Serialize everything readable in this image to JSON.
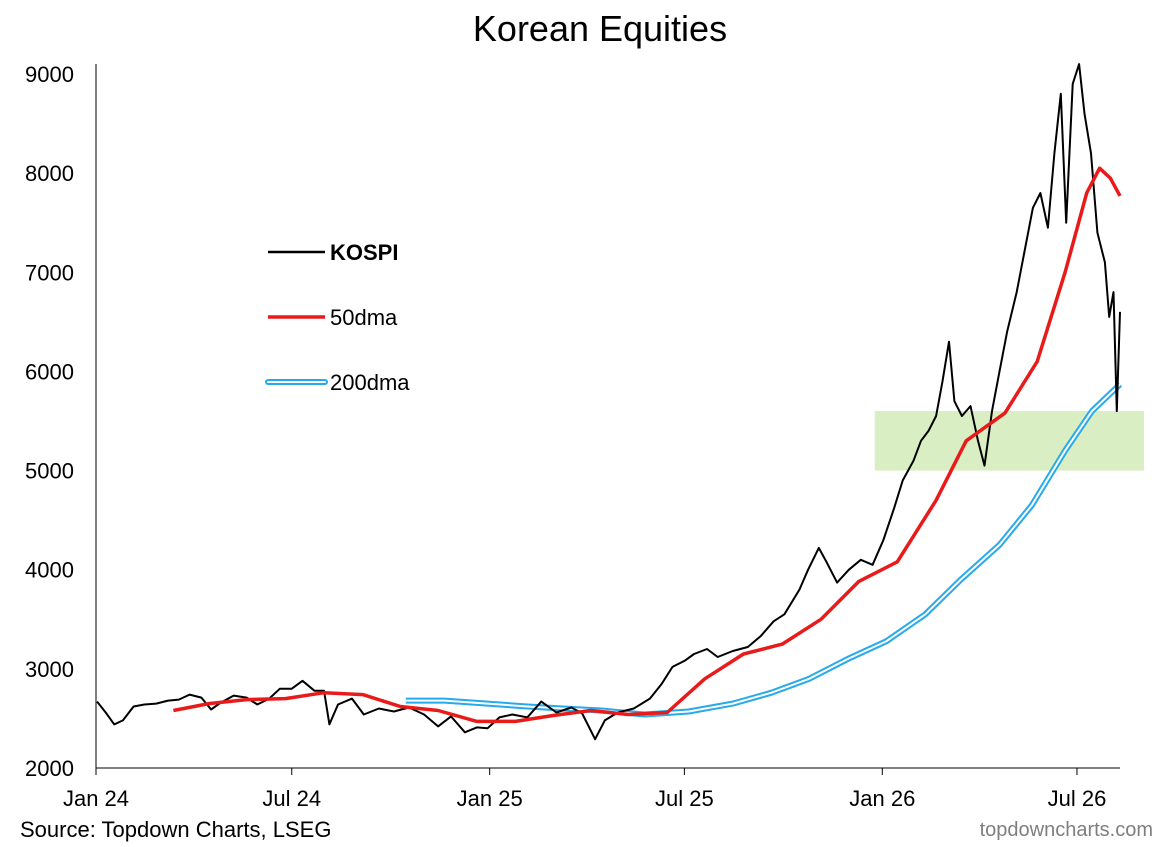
{
  "chart_data": {
    "type": "line",
    "title": "Korean Equities",
    "xlabel": "",
    "ylabel": "",
    "ylim": [
      2000,
      9000
    ],
    "xlim": [
      "2024-01-01",
      "2026-08-10"
    ],
    "y_ticks": [
      2000,
      3000,
      4000,
      5000,
      6000,
      7000,
      8000,
      9000
    ],
    "y_tick_labels": [
      "2000",
      "3000",
      "4000",
      "5000",
      "6000",
      "7000",
      "8000",
      "9000"
    ],
    "x_ticks": [
      "2024-01-01",
      "2024-07-01",
      "2025-01-01",
      "2025-07-01",
      "2026-01-01",
      "2026-07-01"
    ],
    "x_tick_labels": [
      "Jan 24",
      "Jul 24",
      "Jan 25",
      "Jul 25",
      "Jan 26",
      "Jul 26"
    ],
    "grid": false,
    "legend_position": "upper-left",
    "highlight_band": {
      "x_start": "2025-12-25",
      "x_end": "2026-08-10",
      "y_start": 5000,
      "y_end": 5600,
      "color": "#d9efc3"
    },
    "series": [
      {
        "name": "KOSPI",
        "color": "#000000",
        "points": [
          [
            "2024-01-02",
            2670
          ],
          [
            "2024-01-10",
            2560
          ],
          [
            "2024-01-18",
            2440
          ],
          [
            "2024-01-26",
            2480
          ],
          [
            "2024-02-05",
            2620
          ],
          [
            "2024-02-15",
            2640
          ],
          [
            "2024-02-26",
            2650
          ],
          [
            "2024-03-08",
            2680
          ],
          [
            "2024-03-18",
            2690
          ],
          [
            "2024-03-28",
            2740
          ],
          [
            "2024-04-08",
            2710
          ],
          [
            "2024-04-17",
            2590
          ],
          [
            "2024-04-26",
            2660
          ],
          [
            "2024-05-08",
            2730
          ],
          [
            "2024-05-20",
            2710
          ],
          [
            "2024-05-30",
            2640
          ],
          [
            "2024-06-10",
            2700
          ],
          [
            "2024-06-20",
            2800
          ],
          [
            "2024-07-01",
            2800
          ],
          [
            "2024-07-11",
            2880
          ],
          [
            "2024-07-22",
            2780
          ],
          [
            "2024-07-31",
            2780
          ],
          [
            "2024-08-05",
            2440
          ],
          [
            "2024-08-13",
            2640
          ],
          [
            "2024-08-26",
            2700
          ],
          [
            "2024-09-06",
            2540
          ],
          [
            "2024-09-20",
            2600
          ],
          [
            "2024-10-04",
            2570
          ],
          [
            "2024-10-18",
            2610
          ],
          [
            "2024-11-01",
            2540
          ],
          [
            "2024-11-14",
            2420
          ],
          [
            "2024-11-26",
            2520
          ],
          [
            "2024-12-09",
            2360
          ],
          [
            "2024-12-20",
            2410
          ],
          [
            "2024-12-30",
            2400
          ],
          [
            "2025-01-10",
            2510
          ],
          [
            "2025-01-22",
            2540
          ],
          [
            "2025-02-05",
            2510
          ],
          [
            "2025-02-18",
            2670
          ],
          [
            "2025-03-04",
            2560
          ],
          [
            "2025-03-18",
            2610
          ],
          [
            "2025-03-28",
            2550
          ],
          [
            "2025-04-09",
            2290
          ],
          [
            "2025-04-18",
            2480
          ],
          [
            "2025-04-30",
            2560
          ],
          [
            "2025-05-15",
            2600
          ],
          [
            "2025-05-30",
            2700
          ],
          [
            "2025-06-10",
            2850
          ],
          [
            "2025-06-20",
            3020
          ],
          [
            "2025-07-01",
            3080
          ],
          [
            "2025-07-10",
            3150
          ],
          [
            "2025-07-22",
            3200
          ],
          [
            "2025-08-01",
            3120
          ],
          [
            "2025-08-15",
            3180
          ],
          [
            "2025-08-29",
            3220
          ],
          [
            "2025-09-10",
            3330
          ],
          [
            "2025-09-22",
            3480
          ],
          [
            "2025-10-02",
            3550
          ],
          [
            "2025-10-16",
            3800
          ],
          [
            "2025-10-24",
            4000
          ],
          [
            "2025-11-03",
            4220
          ],
          [
            "2025-11-10",
            4080
          ],
          [
            "2025-11-20",
            3870
          ],
          [
            "2025-12-01",
            4000
          ],
          [
            "2025-12-12",
            4100
          ],
          [
            "2025-12-23",
            4050
          ],
          [
            "2026-01-02",
            4300
          ],
          [
            "2026-01-12",
            4620
          ],
          [
            "2026-01-20",
            4900
          ],
          [
            "2026-01-30",
            5100
          ],
          [
            "2026-02-06",
            5300
          ],
          [
            "2026-02-13",
            5400
          ],
          [
            "2026-02-20",
            5550
          ],
          [
            "2026-02-26",
            5900
          ],
          [
            "2026-03-04",
            6300
          ],
          [
            "2026-03-09",
            5700
          ],
          [
            "2026-03-16",
            5550
          ],
          [
            "2026-03-24",
            5650
          ],
          [
            "2026-03-31",
            5300
          ],
          [
            "2026-04-06",
            5050
          ],
          [
            "2026-04-13",
            5600
          ],
          [
            "2026-04-20",
            6000
          ],
          [
            "2026-04-27",
            6400
          ],
          [
            "2026-05-06",
            6800
          ],
          [
            "2026-05-13",
            7200
          ],
          [
            "2026-05-21",
            7650
          ],
          [
            "2026-05-28",
            7800
          ],
          [
            "2026-06-04",
            7450
          ],
          [
            "2026-06-10",
            8200
          ],
          [
            "2026-06-16",
            8800
          ],
          [
            "2026-06-21",
            7500
          ],
          [
            "2026-06-27",
            8900
          ],
          [
            "2026-07-03",
            9100
          ],
          [
            "2026-07-08",
            8600
          ],
          [
            "2026-07-14",
            8200
          ],
          [
            "2026-07-20",
            7400
          ],
          [
            "2026-07-27",
            7100
          ],
          [
            "2026-07-31",
            6550
          ],
          [
            "2026-08-04",
            6800
          ],
          [
            "2026-08-07",
            5600
          ],
          [
            "2026-08-10",
            6600
          ]
        ]
      },
      {
        "name": "50dma",
        "color": "#e81a1a",
        "points": [
          [
            "2024-03-13",
            2580
          ],
          [
            "2024-04-15",
            2650
          ],
          [
            "2024-05-20",
            2690
          ],
          [
            "2024-06-25",
            2700
          ],
          [
            "2024-07-31",
            2760
          ],
          [
            "2024-09-05",
            2740
          ],
          [
            "2024-10-10",
            2620
          ],
          [
            "2024-11-14",
            2580
          ],
          [
            "2024-12-20",
            2470
          ],
          [
            "2025-01-25",
            2470
          ],
          [
            "2025-03-01",
            2530
          ],
          [
            "2025-04-05",
            2580
          ],
          [
            "2025-05-10",
            2540
          ],
          [
            "2025-06-15",
            2560
          ],
          [
            "2025-07-20",
            2900
          ],
          [
            "2025-08-25",
            3150
          ],
          [
            "2025-09-30",
            3250
          ],
          [
            "2025-11-05",
            3500
          ],
          [
            "2025-12-10",
            3880
          ],
          [
            "2026-01-15",
            4080
          ],
          [
            "2026-02-20",
            4700
          ],
          [
            "2026-03-20",
            5300
          ],
          [
            "2026-04-25",
            5580
          ],
          [
            "2026-05-25",
            6100
          ],
          [
            "2026-06-20",
            7000
          ],
          [
            "2026-07-10",
            7800
          ],
          [
            "2026-07-22",
            8050
          ],
          [
            "2026-08-01",
            7950
          ],
          [
            "2026-08-10",
            7770
          ]
        ]
      },
      {
        "name": "200dma",
        "color": "#27aaeb",
        "points": [
          [
            "2024-10-15",
            2680
          ],
          [
            "2024-11-20",
            2680
          ],
          [
            "2024-12-30",
            2650
          ],
          [
            "2025-02-05",
            2620
          ],
          [
            "2025-03-10",
            2600
          ],
          [
            "2025-04-15",
            2580
          ],
          [
            "2025-05-25",
            2540
          ],
          [
            "2025-07-05",
            2570
          ],
          [
            "2025-08-15",
            2650
          ],
          [
            "2025-09-20",
            2760
          ],
          [
            "2025-10-25",
            2900
          ],
          [
            "2025-11-30",
            3100
          ],
          [
            "2026-01-05",
            3280
          ],
          [
            "2026-02-10",
            3550
          ],
          [
            "2026-03-15",
            3900
          ],
          [
            "2026-04-20",
            4250
          ],
          [
            "2026-05-20",
            4650
          ],
          [
            "2026-06-20",
            5200
          ],
          [
            "2026-07-15",
            5600
          ],
          [
            "2026-08-10",
            5870
          ]
        ]
      }
    ]
  },
  "footer": {
    "source": "Source: Topdown Charts, LSEG",
    "brand": "topdowncharts.com"
  }
}
